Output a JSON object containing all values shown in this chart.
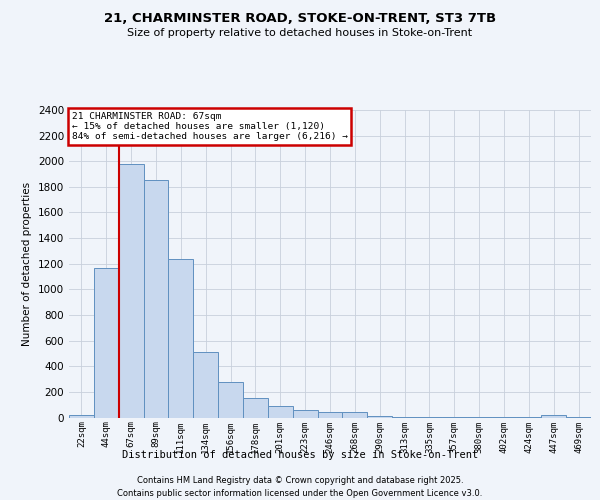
{
  "title_line1": "21, CHARMINSTER ROAD, STOKE-ON-TRENT, ST3 7TB",
  "title_line2": "Size of property relative to detached houses in Stoke-on-Trent",
  "xlabel": "Distribution of detached houses by size in Stoke-on-Trent",
  "ylabel": "Number of detached properties",
  "footer_line1": "Contains HM Land Registry data © Crown copyright and database right 2025.",
  "footer_line2": "Contains public sector information licensed under the Open Government Licence v3.0.",
  "annotation_line1": "21 CHARMINSTER ROAD: 67sqm",
  "annotation_line2": "← 15% of detached houses are smaller (1,120)",
  "annotation_line3": "84% of semi-detached houses are larger (6,216) →",
  "bar_color": "#c8d8ee",
  "bar_edge_color": "#6090c0",
  "vline_color": "#cc0000",
  "annotation_box_edgecolor": "#cc0000",
  "background_color": "#f0f4fa",
  "grid_color": "#c8d0dc",
  "categories": [
    "22sqm",
    "44sqm",
    "67sqm",
    "89sqm",
    "111sqm",
    "134sqm",
    "156sqm",
    "178sqm",
    "201sqm",
    "223sqm",
    "246sqm",
    "268sqm",
    "290sqm",
    "313sqm",
    "335sqm",
    "357sqm",
    "380sqm",
    "402sqm",
    "424sqm",
    "447sqm",
    "469sqm"
  ],
  "values": [
    20,
    1170,
    1980,
    1850,
    1240,
    510,
    280,
    155,
    90,
    55,
    45,
    40,
    15,
    5,
    5,
    5,
    5,
    5,
    5,
    20,
    5
  ],
  "ylim": [
    0,
    2400
  ],
  "yticks": [
    0,
    200,
    400,
    600,
    800,
    1000,
    1200,
    1400,
    1600,
    1800,
    2000,
    2200,
    2400
  ],
  "vline_index": 2,
  "figwidth": 6.0,
  "figheight": 5.0,
  "dpi": 100
}
